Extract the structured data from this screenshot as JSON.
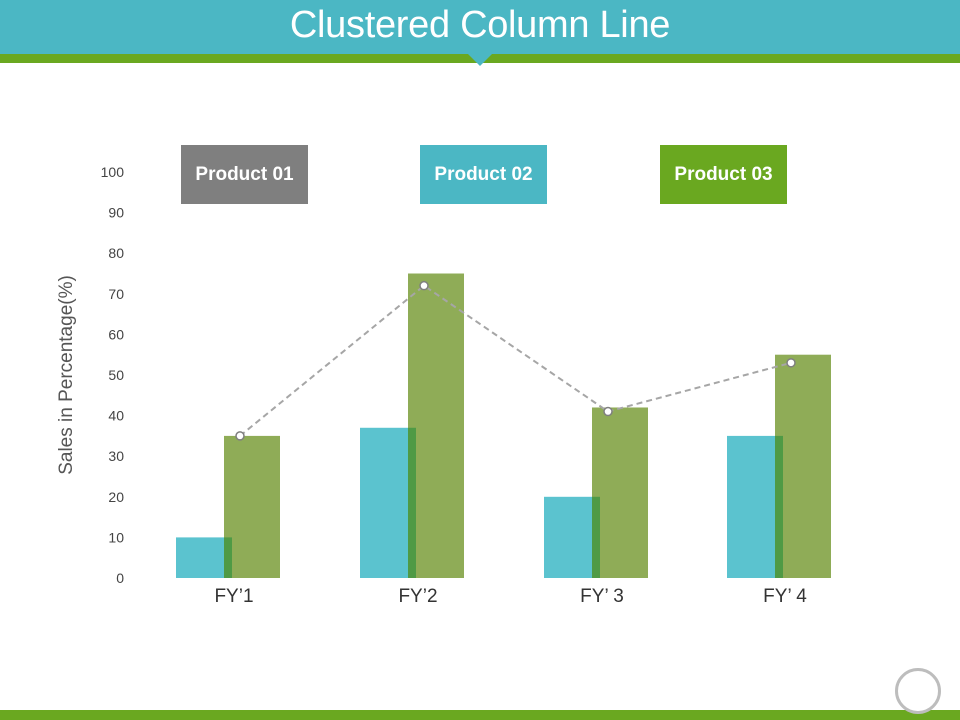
{
  "title": "Clustered Column Line",
  "colors": {
    "header": "#4bb7c4",
    "accent_green": "#6aa820",
    "product_01": "#7f7f7f",
    "product_02": "#5bc3cf",
    "product_03": "#8fac57",
    "overlap": "#4f9a45",
    "line": "#a6a6a6"
  },
  "chart_data": {
    "type": "bar",
    "categories": [
      "FY’1",
      "FY’2",
      "FY’ 3",
      "FY’ 4"
    ],
    "ylabel": "Sales in Percentage(%)",
    "xlabel": "",
    "ylim": [
      0,
      100
    ],
    "yticks": [
      0,
      10,
      20,
      30,
      40,
      50,
      60,
      70,
      80,
      90,
      100
    ],
    "legend": [
      "Product 01",
      "Product 02",
      "Product 03"
    ],
    "series": [
      {
        "name": "Product 02",
        "kind": "bar",
        "values": [
          10,
          37,
          20,
          35
        ]
      },
      {
        "name": "Product 03",
        "kind": "bar",
        "values": [
          35,
          75,
          42,
          55
        ]
      },
      {
        "name": "Product 01",
        "kind": "line",
        "style": "dashed",
        "values": [
          35,
          72,
          41,
          53
        ]
      }
    ]
  }
}
